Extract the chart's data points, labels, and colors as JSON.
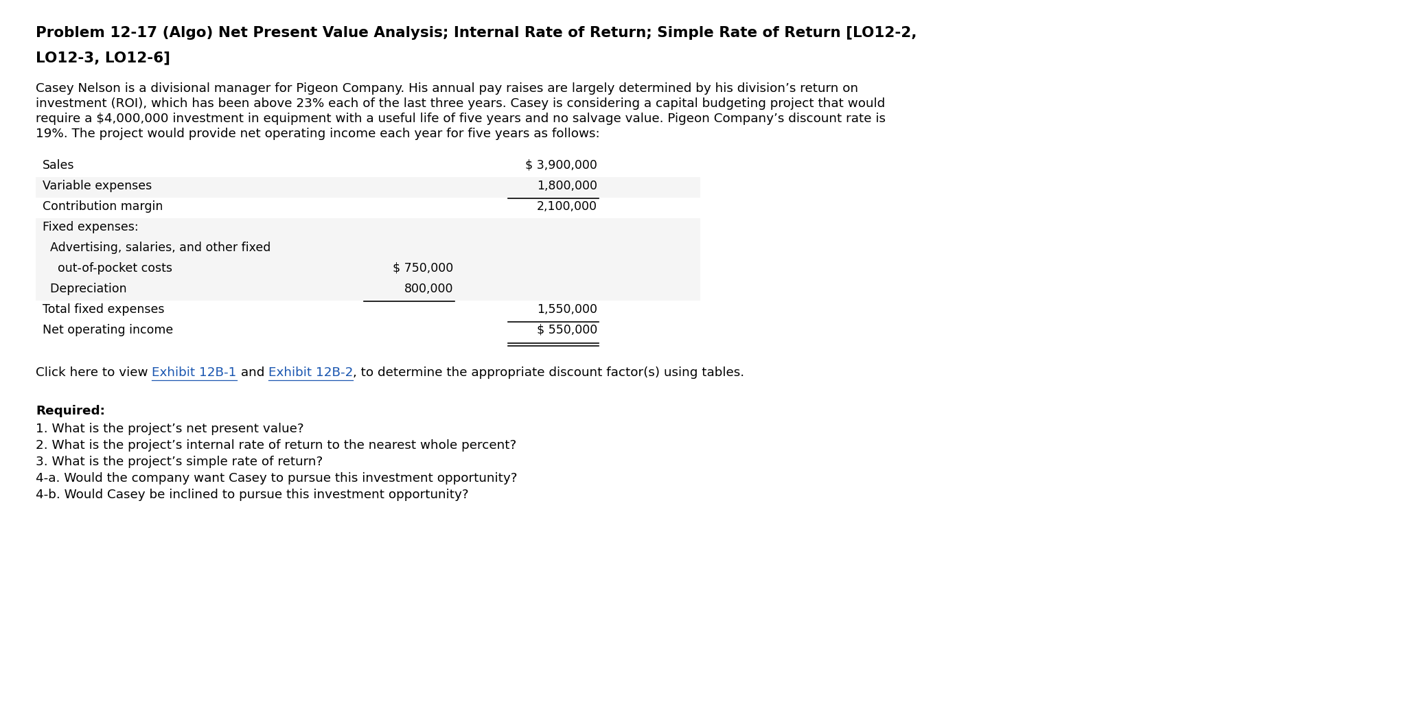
{
  "title_line1": "Problem 12-17 (Algo) Net Present Value Analysis; Internal Rate of Return; Simple Rate of Return [LO12-2,",
  "title_line2": "LO12-3, LO12-6]",
  "background_color": "#ffffff",
  "para_line1": "Casey Nelson is a divisional manager for Pigeon Company. His annual pay raises are largely determined by his division’s return on",
  "para_line2": "investment (ROI), which has been above 23% each of the last three years. Casey is considering a capital budgeting project that would",
  "para_line3": "require a $4,000,000 investment in equipment with a useful life of five years and no salvage value. Pigeon Company’s discount rate is",
  "para_line4": "19%. The project would provide net operating income each year for five years as follows:",
  "table_rows": [
    {
      "label": "Sales",
      "col1": "",
      "col2": "$ 3,900,000",
      "indent": 0,
      "bg": "#ffffff"
    },
    {
      "label": "Variable expenses",
      "col1": "",
      "col2": "1,800,000",
      "indent": 0,
      "bg": "#eeeeee"
    },
    {
      "label": "Contribution margin",
      "col1": "",
      "col2": "2,100,000",
      "indent": 0,
      "bg": "#ffffff"
    },
    {
      "label": "Fixed expenses:",
      "col1": "",
      "col2": "",
      "indent": 0,
      "bg": "#eeeeee"
    },
    {
      "label": "  Advertising, salaries, and other fixed",
      "col1": "",
      "col2": "",
      "indent": 0,
      "bg": "#eeeeee"
    },
    {
      "label": "    out-of-pocket costs",
      "col1": "$ 750,000",
      "col2": "",
      "indent": 0,
      "bg": "#eeeeee"
    },
    {
      "label": "  Depreciation",
      "col1": "800,000",
      "col2": "",
      "indent": 0,
      "bg": "#eeeeee"
    },
    {
      "label": "Total fixed expenses",
      "col1": "",
      "col2": "1,550,000",
      "indent": 0,
      "bg": "#ffffff"
    },
    {
      "label": "Net operating income",
      "col1": "",
      "col2": "$ 550,000",
      "indent": 0,
      "bg": "#ffffff"
    }
  ],
  "click_text_before": "Click here to view ",
  "click_link1": "Exhibit 12B-1",
  "click_text_middle": " and ",
  "click_link2": "Exhibit 12B-2",
  "click_text_after": ", to determine the appropriate discount factor(s) using tables.",
  "required_label": "Required:",
  "required_items": [
    "1. What is the project’s net present value?",
    "2. What is the project’s internal rate of return to the nearest whole percent?",
    "3. What is the project’s simple rate of return?",
    "4-a. Would the company want Casey to pursue this investment opportunity?",
    "4-b. Would Casey be inclined to pursue this investment opportunity?"
  ],
  "title_fontsize": 15.5,
  "body_fontsize": 13.2,
  "table_fontsize": 12.5,
  "required_fontsize": 13.2,
  "link_color": "#1a56b0",
  "text_color": "#000000",
  "row_stripe1": "#f5f5f5",
  "row_stripe2": "#ffffff"
}
